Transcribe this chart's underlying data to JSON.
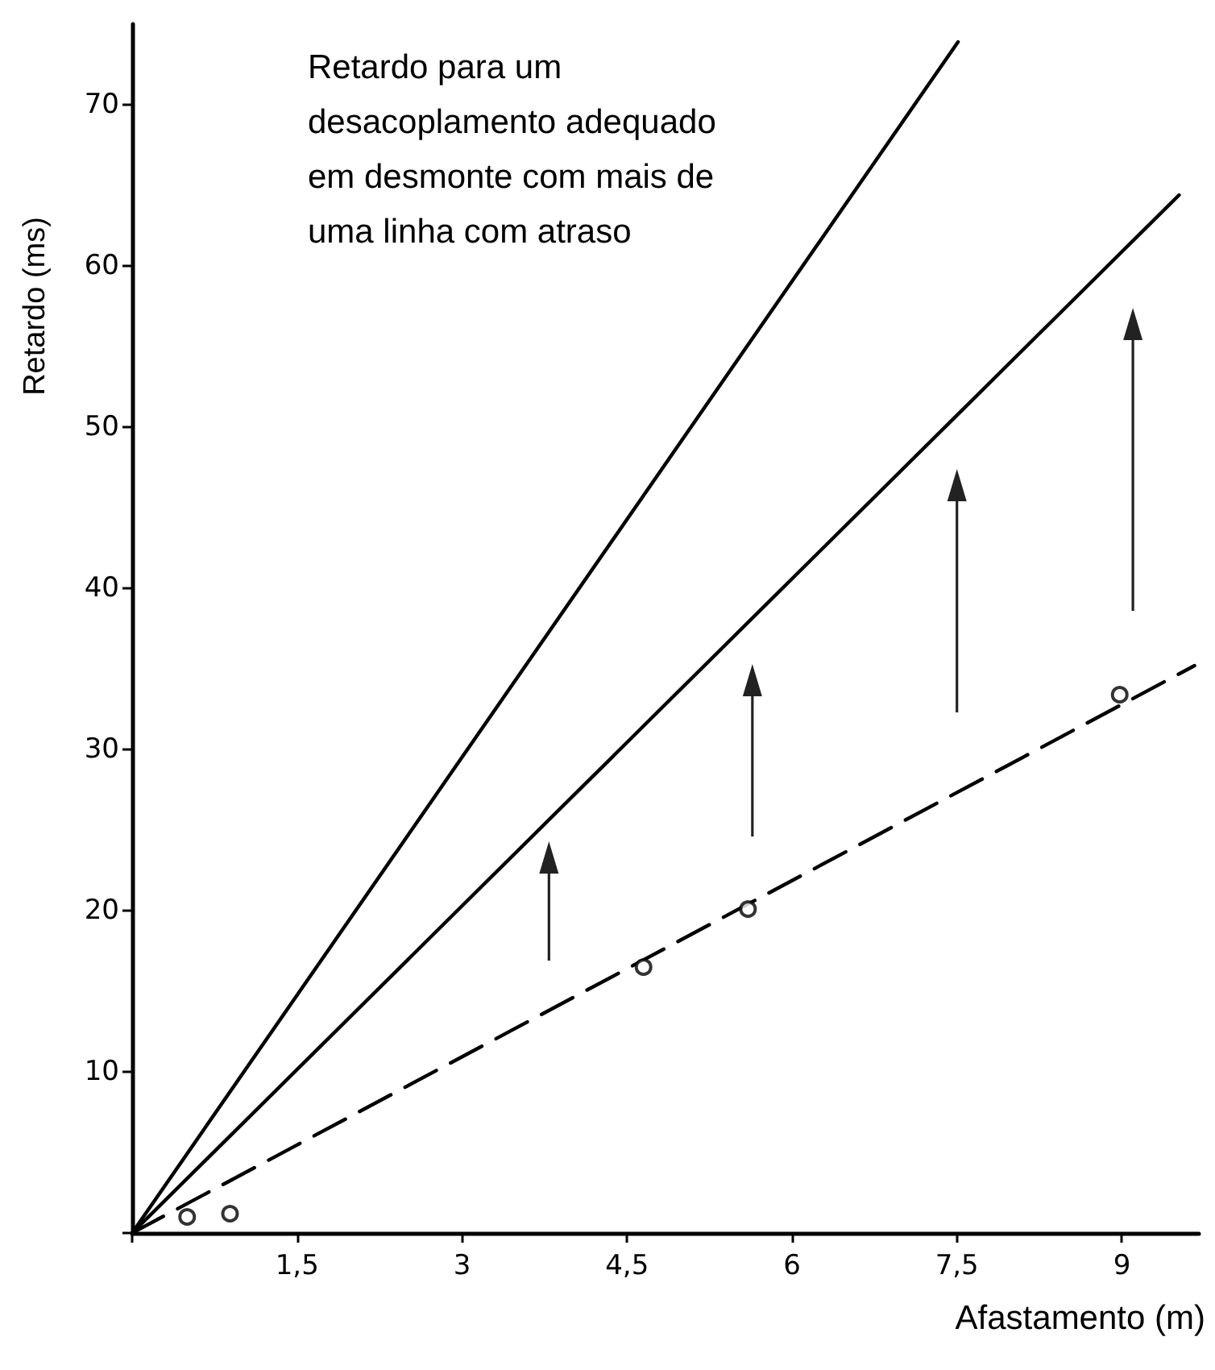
{
  "chart_data": {
    "type": "line",
    "title": "Retardo para um desacoplamento adequado em desmonte com mais de uma linha com atraso",
    "xlabel": "Afastamento (m)",
    "ylabel": "Retardo (ms)",
    "xlim": [
      0,
      9.7
    ],
    "ylim": [
      0,
      75
    ],
    "xticks": [
      {
        "value": 0,
        "label": null
      },
      {
        "value": 1.5,
        "label": "1,5"
      },
      3,
      {
        "value": 4.5,
        "label": "4,5"
      },
      6,
      {
        "value": 7.5,
        "label": "7,5"
      },
      9
    ],
    "yticks": [
      {
        "value": 0,
        "label": null
      },
      10,
      20,
      30,
      40,
      50,
      60,
      70
    ],
    "grid": false,
    "series": [
      {
        "x": [
          0,
          7.51
        ],
        "values": [
          0,
          73.9
        ],
        "color": "#000000",
        "line_style": "solid",
        "marker": "none"
      },
      {
        "x": [
          0,
          9.52
        ],
        "values": [
          0,
          64.4
        ],
        "color": "#000000",
        "line_style": "solid",
        "marker": "none"
      },
      {
        "x": [
          0,
          9.66
        ],
        "values": [
          0,
          35.2
        ],
        "color": "#000000",
        "line_style": "dashed",
        "marker": "none"
      },
      {
        "type": "scatter",
        "x": [
          0.5,
          0.89,
          4.65,
          5.6,
          8.98
        ],
        "values": [
          1.0,
          1.2,
          16.5,
          20.1,
          33.4
        ],
        "color": "#000000",
        "marker": "circle"
      }
    ]
  }
}
